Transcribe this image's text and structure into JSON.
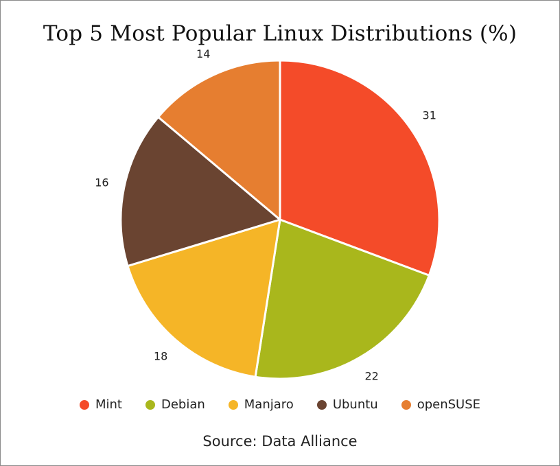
{
  "chart_data": {
    "type": "pie",
    "title": "Top 5 Most Popular Linux Distributions (%)",
    "source": "Source: Data Alliance",
    "legend_position": "bottom",
    "categories": [
      "Mint",
      "Debian",
      "Manjaro",
      "Ubuntu",
      "openSUSE"
    ],
    "values": [
      31,
      22,
      18,
      16,
      14
    ],
    "colors": [
      "#f44b29",
      "#a9b71c",
      "#f5b527",
      "#6a4431",
      "#e67e30"
    ]
  }
}
